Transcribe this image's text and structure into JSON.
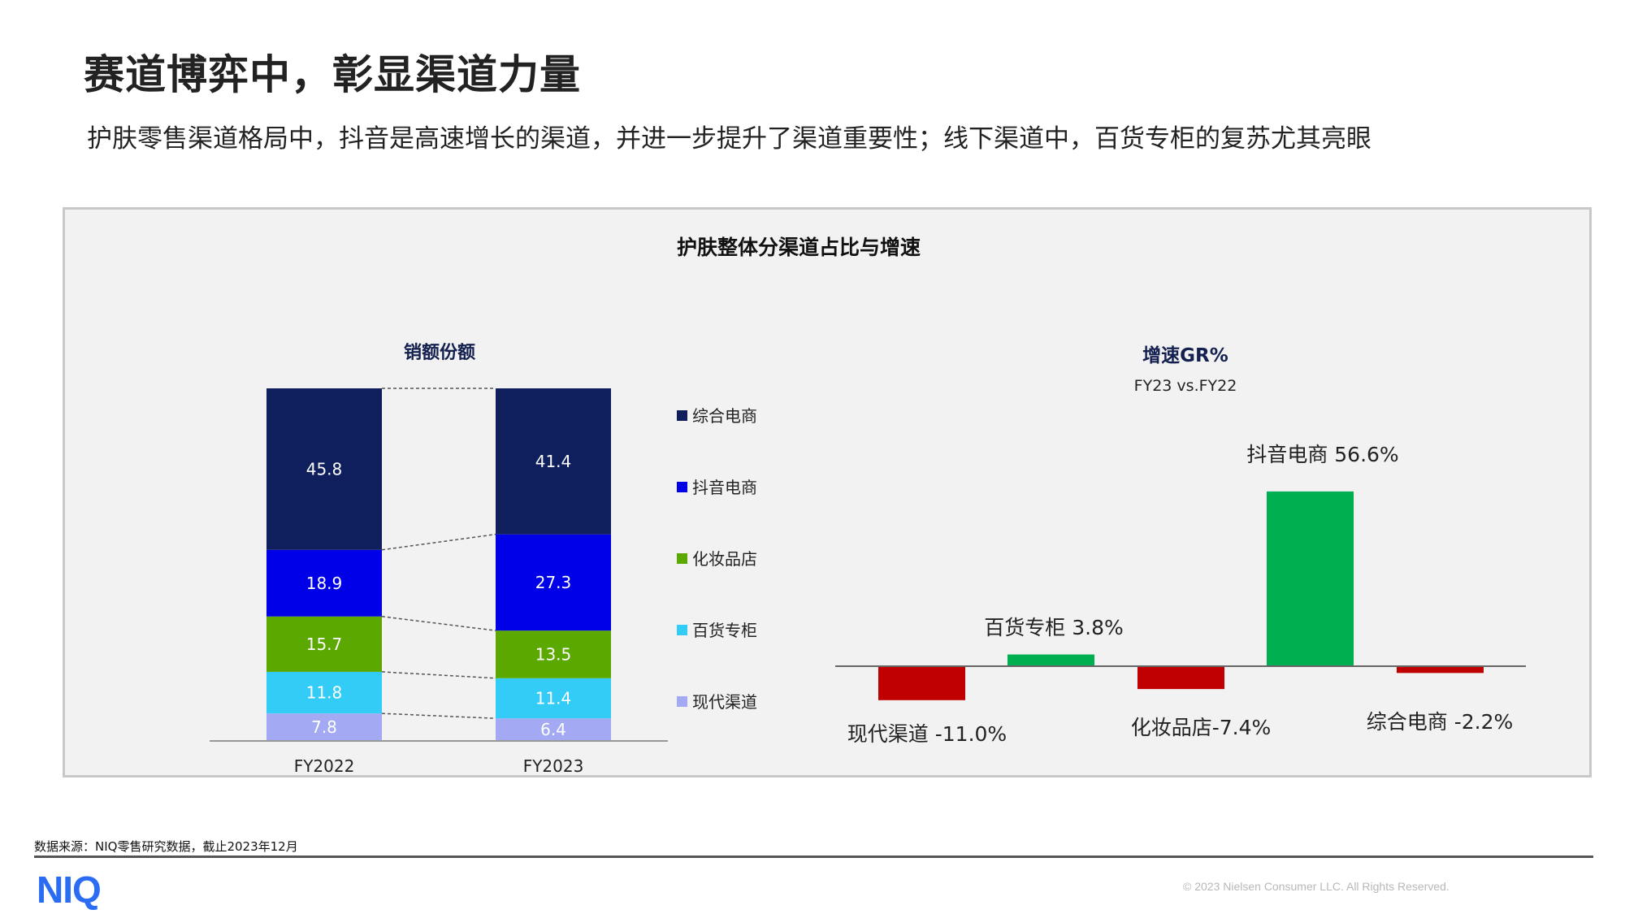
{
  "header": {
    "title": "赛道博弈中，彰显渠道力量",
    "subtitle": "护肤零售渠道格局中，抖音是高速增长的渠道，并进一步提升了渠道重要性；线下渠道中，百货专柜的复苏尤其亮眼"
  },
  "panel": {
    "title": "护肤整体分渠道占比与增速"
  },
  "chart_data": [
    {
      "type": "bar",
      "stacked": true,
      "title": "销额份额",
      "categories": [
        "FY2022",
        "FY2023"
      ],
      "series": [
        {
          "name": "现代渠道",
          "values": [
            7.8,
            6.4
          ],
          "color": "#a3a9f2"
        },
        {
          "name": "百货专柜",
          "values": [
            11.8,
            11.4
          ],
          "color": "#33ccf7"
        },
        {
          "name": "化妆品店",
          "values": [
            15.7,
            13.5
          ],
          "color": "#5aa800"
        },
        {
          "name": "抖音电商",
          "values": [
            18.9,
            27.3
          ],
          "color": "#0000e8"
        },
        {
          "name": "综合电商",
          "values": [
            45.8,
            41.4
          ],
          "color": "#0f1f5e"
        }
      ],
      "legend_order": [
        "综合电商",
        "抖音电商",
        "化妆品店",
        "百货专柜",
        "现代渠道"
      ],
      "legend": "right",
      "connector_lines": "dashed",
      "ylim": [
        0,
        100
      ],
      "grid": false
    },
    {
      "type": "bar",
      "title": "增速GR%",
      "subtitle": "FY23 vs.FY22",
      "categories": [
        "现代渠道",
        "百货专柜",
        "化妆品店",
        "抖音电商",
        "综合电商"
      ],
      "values": [
        -11.0,
        3.8,
        -7.4,
        56.6,
        -2.2
      ],
      "labels": [
        "现代渠道 -11.0%",
        "百货专柜 3.8%",
        "化妆品店-7.4%",
        "抖音电商 56.6%",
        "综合电商 -2.2%"
      ],
      "positive_color": "#00b050",
      "negative_color": "#c00000",
      "grid": false
    }
  ],
  "footer": {
    "source": "数据来源：NIQ零售研究数据，截止2023年12月",
    "logo": "NIQ",
    "copyright": "© 2023 Nielsen Consumer LLC. All Rights Reserved."
  }
}
